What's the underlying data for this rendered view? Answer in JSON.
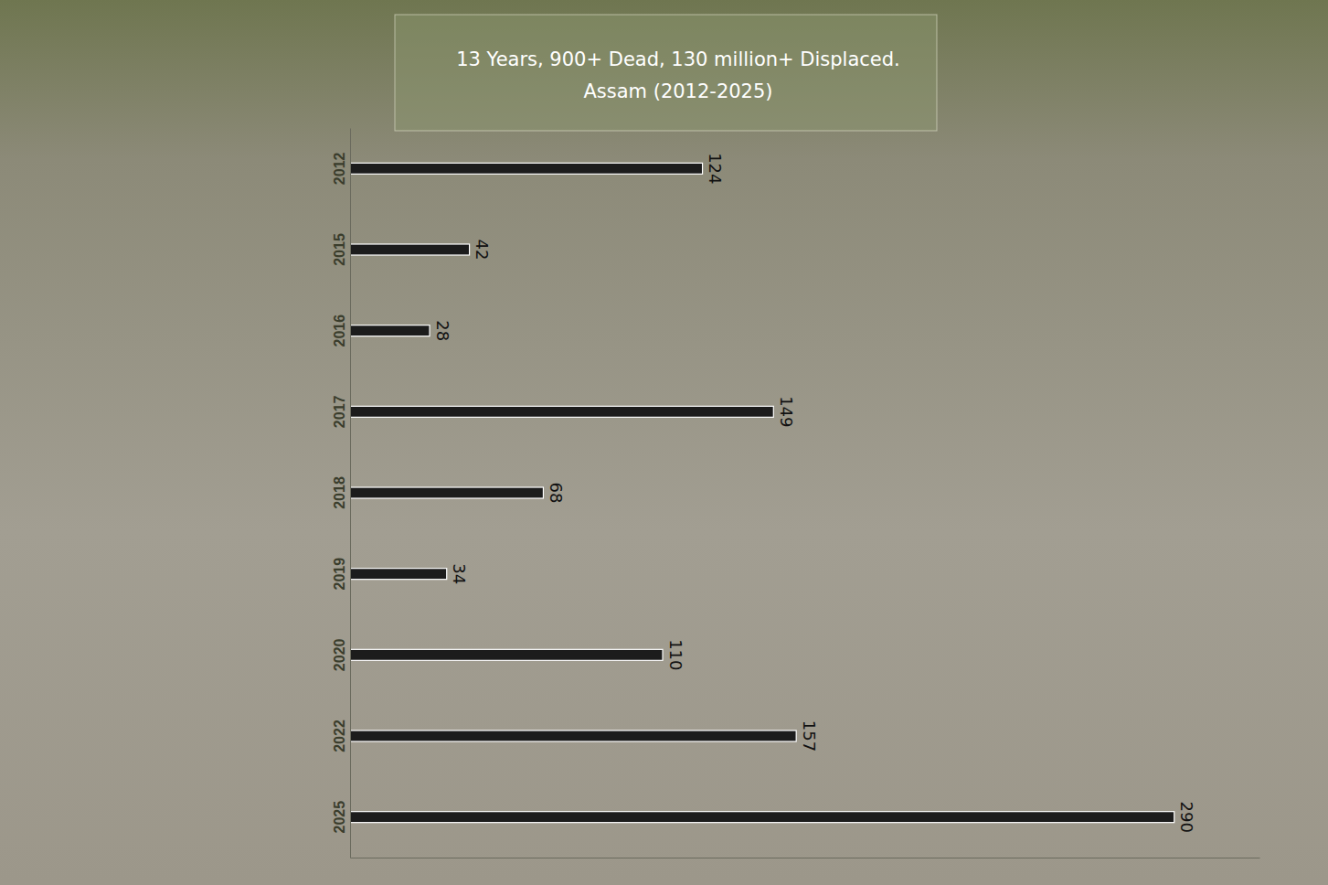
{
  "chart_data": {
    "type": "bar",
    "orientation": "horizontal",
    "title": "13 Years, 900+ Dead, 130 million+ Displaced.",
    "subtitle": "Assam (2012-2025)",
    "categories": [
      "2012",
      "2015",
      "2016",
      "2017",
      "2018",
      "2019",
      "2020",
      "2022",
      "2025"
    ],
    "values": [
      124,
      42,
      28,
      149,
      68,
      34,
      110,
      157,
      290
    ],
    "color": "#1c1c1c",
    "xlim": [
      0,
      320
    ],
    "xticks": [],
    "grid": false,
    "data_labels": true,
    "tick_labels": "y"
  }
}
